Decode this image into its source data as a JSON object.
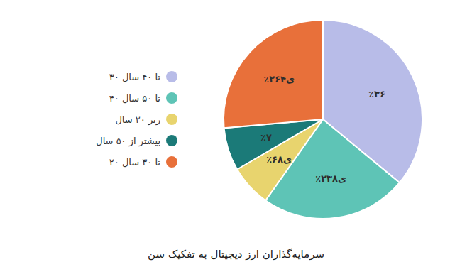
{
  "chart_data": {
    "type": "pie",
    "title": "سرمایه‌گذاران ارز دیجیتال به تفکیک سن",
    "categories": [
      "۳۰ تا ۴۰ سال",
      "۴۰ تا ۵۰ سال",
      "زیر ۲۰ سال",
      "بیشتر از ۵۰ سال",
      "۲۰ تا ۳۰ سال"
    ],
    "values": [
      36.0,
      23.8,
      6.8,
      7.0,
      26.4
    ],
    "value_labels": [
      "٪۳۶",
      "٪۲۳ی۸",
      "٪۶ی۸",
      "٪۷",
      "٪۲۶ی۴"
    ],
    "colors": [
      "#b8bce8",
      "#5ec4b6",
      "#e8d46e",
      "#1b7a78",
      "#e8703a"
    ],
    "data_labels": true,
    "legend": "left"
  }
}
